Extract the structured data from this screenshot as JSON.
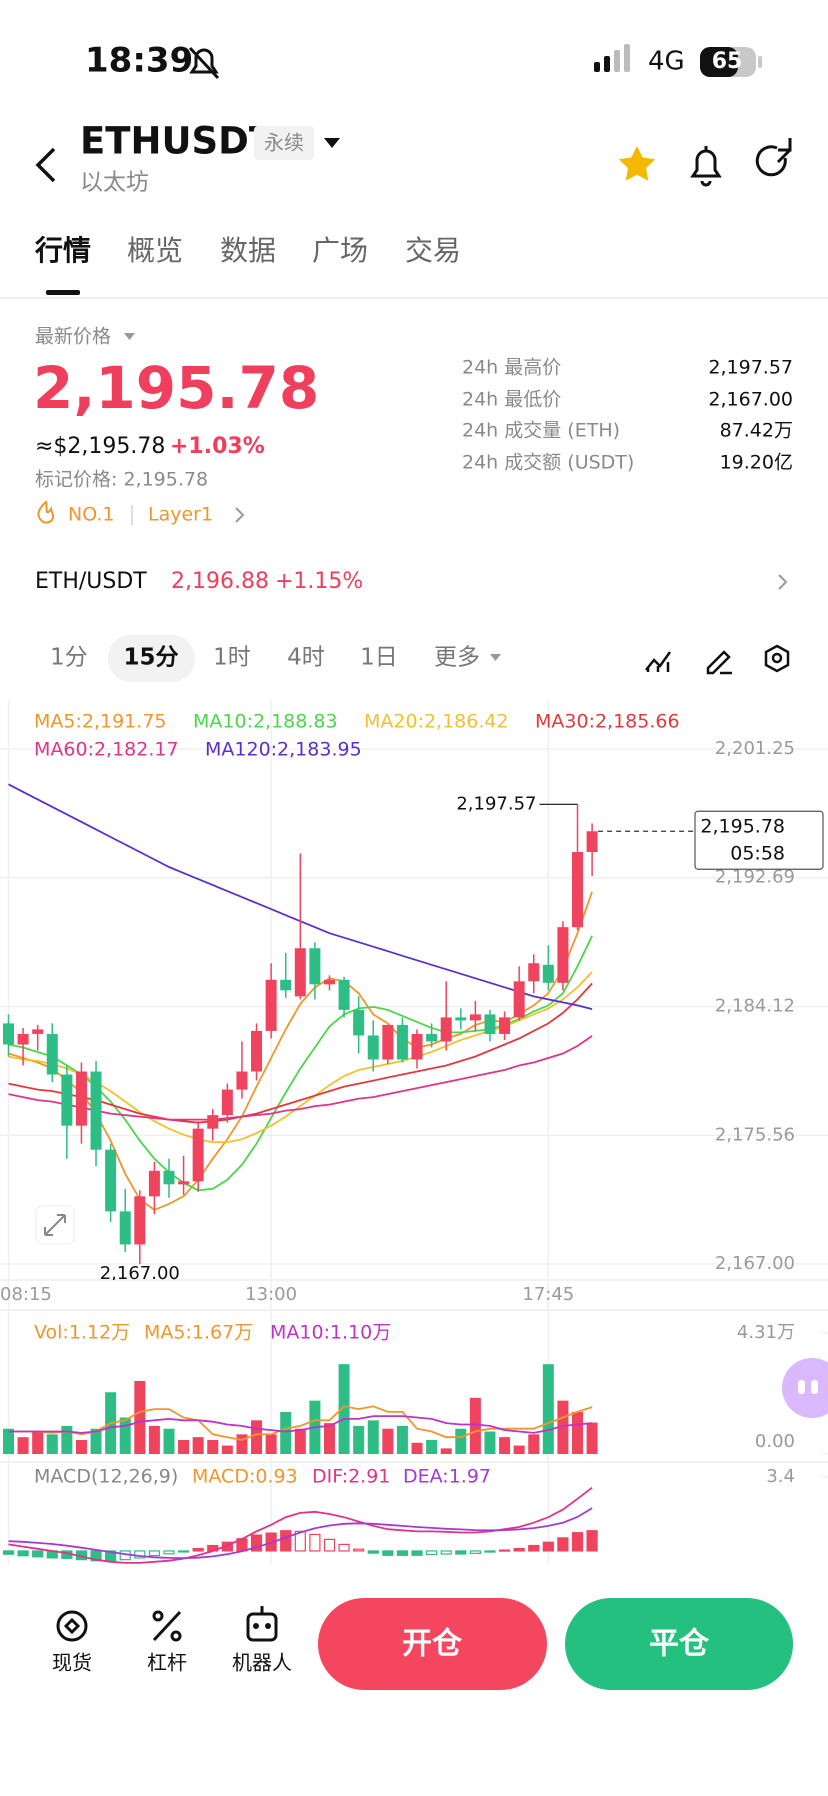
{
  "status_bar": {
    "time": "18:39",
    "network": "4G",
    "battery": "65"
  },
  "header": {
    "symbol": "ETHUSDT",
    "contract_tag": "永续",
    "name": "以太坊"
  },
  "tabs": [
    "行情",
    "概览",
    "数据",
    "广场",
    "交易"
  ],
  "price": {
    "label": "最新价格",
    "last": "2,195.78",
    "usd": "≈$2,195.78",
    "change": "+1.03%",
    "mark": "标记价格: 2,195.78",
    "rank": "NO.1",
    "sector": "Layer1"
  },
  "stats": [
    {
      "label": "24h 最高价",
      "value": "2,197.57"
    },
    {
      "label": "24h 最低价",
      "value": "2,167.00"
    },
    {
      "label": "24h 成交量 (ETH)",
      "value": "87.42万"
    },
    {
      "label": "24h 成交额 (USDT)",
      "value": "19.20亿"
    }
  ],
  "spot": {
    "pair": "ETH/USDT",
    "price": "2,196.88",
    "change": "+1.15%"
  },
  "intervals": [
    "1分",
    "15分",
    "1时",
    "4时",
    "1日",
    "更多"
  ],
  "chart_data": [
    {
      "type": "candlestick",
      "categories": [
        "08:15",
        null,
        null,
        null,
        null,
        null,
        null,
        null,
        null,
        null,
        null,
        null,
        null,
        null,
        null,
        null,
        null,
        null,
        "13:00",
        null,
        null,
        null,
        null,
        null,
        null,
        null,
        null,
        null,
        null,
        null,
        null,
        null,
        null,
        null,
        null,
        null,
        null,
        "17:45",
        null,
        null,
        null
      ],
      "open": [
        2183.0,
        2181.6,
        2182.3,
        2182.3,
        2179.6,
        2176.2,
        2179.8,
        2174.6,
        2170.5,
        2168.3,
        2171.5,
        2173.2,
        2172.3,
        2172.5,
        2176.0,
        2176.9,
        2178.6,
        2179.8,
        2182.5,
        2185.9,
        2184.8,
        2188.0,
        2185.6,
        2185.9,
        2183.9,
        2182.2,
        2180.6,
        2182.9,
        2180.6,
        2182.3,
        2181.8,
        2183.4,
        2183.2,
        2183.6,
        2182.3,
        2183.4,
        2185.8,
        2186.9,
        2185.7,
        2189.4,
        2194.4
      ],
      "high": [
        2183.6,
        2182.7,
        2182.9,
        2183.0,
        2180.2,
        2180.4,
        2180.5,
        2175.0,
        2172.0,
        2171.9,
        2173.8,
        2174.0,
        2174.2,
        2176.5,
        2177.3,
        2179.0,
        2181.8,
        2183.0,
        2187.0,
        2187.7,
        2194.3,
        2188.4,
        2186.2,
        2186.1,
        2184.8,
        2183.2,
        2182.9,
        2183.4,
        2182.6,
        2183.0,
        2185.8,
        2184.0,
        2184.5,
        2183.9,
        2183.8,
        2186.8,
        2187.6,
        2188.2,
        2189.8,
        2197.57,
        2196.3
      ],
      "low": [
        2180.8,
        2180.2,
        2181.2,
        2179.1,
        2174.0,
        2175.0,
        2173.5,
        2169.8,
        2167.8,
        2167.0,
        2170.3,
        2171.4,
        2171.6,
        2171.8,
        2175.2,
        2176.4,
        2178.0,
        2179.2,
        2182.0,
        2184.7,
        2184.6,
        2184.6,
        2185.2,
        2183.4,
        2181.0,
        2179.8,
        2180.3,
        2180.4,
        2180.0,
        2181.4,
        2181.2,
        2182.6,
        2182.5,
        2181.8,
        2181.9,
        2183.2,
        2185.0,
        2185.2,
        2185.2,
        2189.2,
        2192.8
      ],
      "close": [
        2181.6,
        2182.3,
        2182.6,
        2179.6,
        2176.2,
        2179.8,
        2174.6,
        2170.5,
        2168.3,
        2171.5,
        2173.2,
        2172.3,
        2172.5,
        2176.0,
        2176.9,
        2178.6,
        2179.8,
        2182.5,
        2185.9,
        2185.2,
        2188.0,
        2185.6,
        2185.9,
        2183.9,
        2182.2,
        2180.6,
        2182.9,
        2180.6,
        2182.3,
        2181.8,
        2183.4,
        2183.2,
        2183.6,
        2182.3,
        2183.4,
        2185.8,
        2187.0,
        2185.7,
        2189.4,
        2194.4,
        2195.78
      ],
      "up_color": "#f0435e",
      "down_color": "#2dbd85",
      "series": [
        {
          "name": "MA5:2,191.75",
          "color": "#f0962b",
          "values": [
            2181.0,
            2180.7,
            2180.4,
            2180.0,
            2179.2,
            2178.4,
            2177.0,
            2175.2,
            2173.0,
            2171.3,
            2170.6,
            2171.0,
            2171.5,
            2172.6,
            2174.0,
            2175.3,
            2176.8,
            2178.8,
            2180.7,
            2182.6,
            2184.3,
            2185.4,
            2186.0,
            2185.8,
            2185.0,
            2183.6,
            2183.0,
            2182.0,
            2181.4,
            2181.6,
            2182.0,
            2182.3,
            2182.9,
            2183.2,
            2183.1,
            2183.6,
            2184.2,
            2185.0,
            2186.6,
            2189.0,
            2191.75
          ]
        },
        {
          "name": "MA10:2,188.83",
          "color": "#4cd64c",
          "values": [
            2181.6,
            2181.4,
            2181.1,
            2180.8,
            2180.2,
            2179.6,
            2178.8,
            2177.8,
            2176.6,
            2175.2,
            2174.0,
            2173.1,
            2172.4,
            2171.9,
            2172.0,
            2172.6,
            2173.6,
            2175.0,
            2176.7,
            2178.4,
            2180.0,
            2181.4,
            2182.8,
            2183.6,
            2184.0,
            2184.1,
            2183.9,
            2183.5,
            2183.1,
            2182.7,
            2182.4,
            2182.4,
            2182.5,
            2182.6,
            2182.9,
            2183.3,
            2183.8,
            2184.2,
            2185.0,
            2186.8,
            2188.83
          ]
        },
        {
          "name": "MA20:2,186.42",
          "color": "#f2c12e",
          "values": [
            2180.8,
            2180.6,
            2180.5,
            2180.3,
            2180.0,
            2179.6,
            2179.1,
            2178.5,
            2177.8,
            2177.1,
            2176.5,
            2176.0,
            2175.6,
            2175.3,
            2175.1,
            2175.1,
            2175.3,
            2175.7,
            2176.2,
            2176.8,
            2177.5,
            2178.2,
            2178.9,
            2179.5,
            2179.9,
            2180.1,
            2180.3,
            2180.5,
            2180.8,
            2181.1,
            2181.5,
            2181.9,
            2182.2,
            2182.5,
            2182.8,
            2183.2,
            2183.6,
            2184.0,
            2184.6,
            2185.4,
            2186.42
          ]
        },
        {
          "name": "MA30:2,185.66",
          "color": "#e2393d",
          "values": [
            2179.0,
            2178.8,
            2178.6,
            2178.5,
            2178.3,
            2178.1,
            2177.9,
            2177.6,
            2177.3,
            2177.0,
            2176.8,
            2176.6,
            2176.5,
            2176.4,
            2176.5,
            2176.6,
            2176.8,
            2177.0,
            2177.3,
            2177.6,
            2177.9,
            2178.2,
            2178.5,
            2178.8,
            2179.0,
            2179.2,
            2179.4,
            2179.6,
            2179.8,
            2180.0,
            2180.2,
            2180.5,
            2180.8,
            2181.2,
            2181.6,
            2182.0,
            2182.5,
            2183.0,
            2183.7,
            2184.6,
            2185.66
          ]
        },
        {
          "name": "MA60:2,182.17",
          "color": "#e0338a",
          "values": [
            2178.3,
            2178.1,
            2177.9,
            2177.8,
            2177.6,
            2177.4,
            2177.2,
            2177.0,
            2176.9,
            2176.8,
            2176.7,
            2176.6,
            2176.6,
            2176.6,
            2176.6,
            2176.7,
            2176.8,
            2176.9,
            2177.0,
            2177.2,
            2177.3,
            2177.5,
            2177.6,
            2177.8,
            2178.0,
            2178.1,
            2178.3,
            2178.5,
            2178.7,
            2178.9,
            2179.1,
            2179.3,
            2179.5,
            2179.7,
            2179.9,
            2180.2,
            2180.4,
            2180.7,
            2181.0,
            2181.5,
            2182.17
          ]
        },
        {
          "name": "MA120:2,183.95",
          "color": "#5b2fc9",
          "values": [
            2198.9,
            2198.4,
            2197.9,
            2197.4,
            2196.9,
            2196.4,
            2195.9,
            2195.4,
            2194.9,
            2194.4,
            2193.9,
            2193.4,
            2193.0,
            2192.6,
            2192.2,
            2191.8,
            2191.4,
            2191.0,
            2190.6,
            2190.2,
            2189.8,
            2189.4,
            2189.0,
            2188.7,
            2188.4,
            2188.1,
            2187.8,
            2187.5,
            2187.2,
            2186.9,
            2186.6,
            2186.3,
            2186.0,
            2185.7,
            2185.4,
            2185.1,
            2184.8,
            2184.6,
            2184.4,
            2184.2,
            2183.95
          ]
        }
      ],
      "ylim": [
        2167.0,
        2201.25
      ],
      "yticks": [
        {
          "value": 2167.0,
          "label": "2,167.00"
        },
        {
          "value": 2175.56,
          "label": "2,175.56"
        },
        {
          "value": 2184.12,
          "label": "2,184.12"
        },
        {
          "value": 2192.69,
          "label": "2,192.69"
        },
        {
          "value": 2201.25,
          "label": "2,201.25"
        }
      ],
      "grid": true,
      "annotations": {
        "high": "2,197.57",
        "low": "2,167.00",
        "last": "2,195.78",
        "countdown": "05:58"
      }
    },
    {
      "type": "bar",
      "label": "Vol:1.12万",
      "label_color": "#f0962b",
      "values": [
        0.9,
        0.6,
        0.8,
        0.7,
        1.0,
        0.5,
        0.9,
        2.2,
        1.3,
        2.6,
        1.0,
        0.9,
        0.5,
        0.6,
        0.5,
        0.3,
        0.7,
        1.2,
        0.7,
        1.5,
        0.9,
        1.9,
        1.1,
        3.2,
        1.0,
        1.2,
        0.9,
        1.0,
        0.4,
        0.5,
        0.2,
        0.9,
        2.0,
        0.8,
        0.6,
        0.3,
        0.7,
        3.2,
        1.9,
        1.5,
        1.12
      ],
      "series": [
        {
          "name": "MA5:1.67万",
          "color": "#f0962b",
          "values": [
            0.8,
            0.8,
            0.8,
            0.75,
            0.8,
            0.7,
            0.8,
            1.1,
            1.2,
            1.5,
            1.6,
            1.6,
            1.3,
            1.2,
            0.7,
            0.6,
            0.5,
            0.7,
            0.7,
            0.9,
            1.0,
            1.2,
            1.2,
            1.7,
            1.6,
            1.7,
            1.5,
            1.5,
            0.9,
            0.8,
            0.6,
            0.6,
            0.8,
            0.9,
            0.9,
            0.9,
            0.9,
            1.1,
            1.3,
            1.5,
            1.67
          ]
        },
        {
          "name": "MA10:1.10万",
          "color": "#c032c9",
          "values": [
            0.8,
            0.8,
            0.8,
            0.8,
            0.8,
            0.75,
            0.8,
            0.95,
            1.0,
            1.15,
            1.2,
            1.25,
            1.2,
            1.2,
            1.15,
            1.05,
            1.0,
            0.9,
            0.85,
            0.8,
            0.85,
            0.95,
            1.0,
            1.25,
            1.25,
            1.35,
            1.35,
            1.35,
            1.3,
            1.25,
            1.1,
            1.05,
            1.05,
            1.0,
            0.85,
            0.8,
            0.75,
            0.85,
            1.0,
            1.05,
            1.1
          ]
        }
      ],
      "ylim": [
        0,
        4.31
      ],
      "yticks": [
        {
          "value": 0,
          "label": "0.00"
        },
        {
          "value": 4.31,
          "label": "4.31万"
        }
      ]
    },
    {
      "type": "macd",
      "title": "MACD(12,26,9)",
      "label": "MACD:0.93",
      "label_color": "#f0962b",
      "values": [
        -0.15,
        -0.22,
        -0.27,
        -0.32,
        -0.34,
        -0.4,
        -0.45,
        -0.45,
        -0.4,
        -0.32,
        -0.21,
        -0.13,
        -0.02,
        0.11,
        0.25,
        0.4,
        0.56,
        0.73,
        0.82,
        0.93,
        0.9,
        0.76,
        0.53,
        0.3,
        0.08,
        -0.1,
        -0.2,
        -0.2,
        -0.2,
        -0.16,
        -0.14,
        -0.14,
        -0.11,
        -0.05,
        0.04,
        0.11,
        0.25,
        0.4,
        0.6,
        0.84,
        0.93
      ],
      "series": [
        {
          "name": "DIF:2.91",
          "color": "#e0338a",
          "values": [
            0.3,
            0.2,
            0.1,
            0.0,
            -0.1,
            -0.25,
            -0.4,
            -0.5,
            -0.55,
            -0.55,
            -0.5,
            -0.45,
            -0.35,
            -0.2,
            0.0,
            0.25,
            0.55,
            0.9,
            1.2,
            1.55,
            1.75,
            1.8,
            1.7,
            1.55,
            1.35,
            1.15,
            1.0,
            0.95,
            0.9,
            0.9,
            0.88,
            0.85,
            0.85,
            0.9,
            1.0,
            1.1,
            1.3,
            1.55,
            1.9,
            2.4,
            2.91
          ]
        },
        {
          "name": "DEA:1.97",
          "color": "#a23bd6",
          "values": [
            0.45,
            0.42,
            0.37,
            0.32,
            0.24,
            0.15,
            0.05,
            -0.05,
            -0.15,
            -0.23,
            -0.29,
            -0.32,
            -0.33,
            -0.31,
            -0.25,
            -0.15,
            -0.01,
            0.17,
            0.38,
            0.62,
            0.85,
            1.04,
            1.17,
            1.25,
            1.27,
            1.25,
            1.2,
            1.15,
            1.1,
            1.06,
            1.02,
            0.99,
            0.96,
            0.95,
            0.96,
            0.99,
            1.05,
            1.15,
            1.3,
            1.56,
            1.97
          ]
        }
      ],
      "ylim": [
        -0.6,
        3.4
      ],
      "yticks": [
        3.4
      ]
    }
  ],
  "actions": {
    "tools": [
      "现货",
      "杠杆",
      "机器人"
    ],
    "open": "开仓",
    "close": "平仓"
  }
}
